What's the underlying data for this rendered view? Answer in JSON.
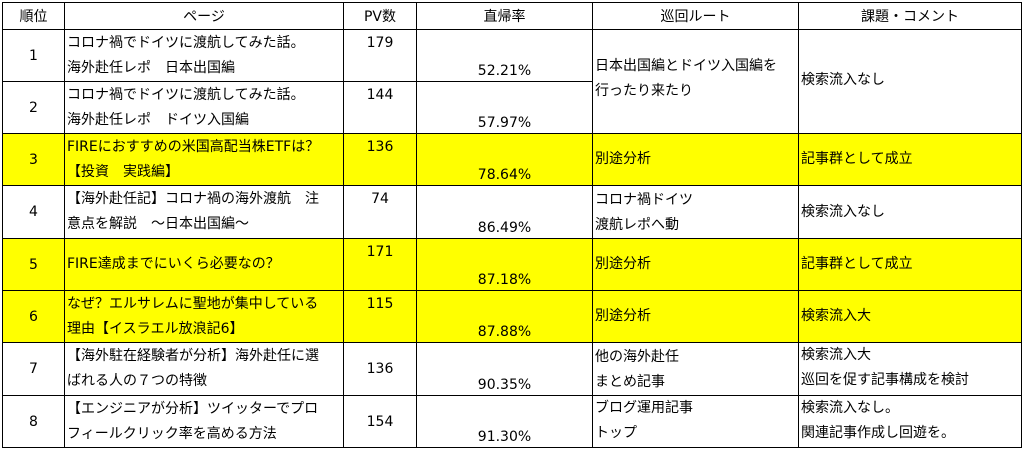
{
  "headers": {
    "rank": "順位",
    "page": "ページ",
    "pv": "PV数",
    "bounce": "直帰率",
    "route": "巡回ルート",
    "comment": "課題・コメント"
  },
  "rows": [
    {
      "rank": "1",
      "page_line1": "コロナ禍でドイツに渡航してみた話。",
      "page_line2": "海外赴任レポ　日本出国編",
      "pv": "179",
      "bounce": "52.21%",
      "route_line1": "日本出国編とドイツ入国編を",
      "route_line2": "行ったり来たり",
      "comment_line1": "検索流入なし",
      "comment_line2": ""
    },
    {
      "rank": "2",
      "page_line1": "コロナ禍でドイツに渡航してみた話。",
      "page_line2": "海外赴任レポ　ドイツ入国編",
      "pv": "144",
      "bounce": "57.97%"
    },
    {
      "rank": "3",
      "page_line1": "FIREにおすすめの米国高配当株ETFは？",
      "page_line2": "【投資　実践編】",
      "pv": "136",
      "bounce": "78.64%",
      "route_line1": "別途分析",
      "route_line2": "",
      "comment_line1": "記事群として成立",
      "comment_line2": ""
    },
    {
      "rank": "4",
      "page_line1": "【海外赴任記】コロナ禍の海外渡航　注",
      "page_line2": "意点を解説　～日本出国編～",
      "pv": "74",
      "bounce": "86.49%",
      "route_line1": "コロナ禍ドイツ",
      "route_line2": "渡航レポへ動",
      "comment_line1": "検索流入なし",
      "comment_line2": ""
    },
    {
      "rank": "5",
      "page_line1": "FIRE達成までにいくら必要なの？",
      "page_line2": "",
      "pv": "171",
      "bounce": "87.18%",
      "route_line1": "別途分析",
      "route_line2": "",
      "comment_line1": "記事群として成立",
      "comment_line2": ""
    },
    {
      "rank": "6",
      "page_line1": "なぜ？エルサレムに聖地が集中している",
      "page_line2": "理由【イスラエル放浪記6】",
      "pv": "115",
      "bounce": "87.88%",
      "route_line1": "別途分析",
      "route_line2": "",
      "comment_line1": "検索流入大",
      "comment_line2": ""
    },
    {
      "rank": "7",
      "page_line1": "【海外駐在経験者が分析】海外赴任に選",
      "page_line2": "ばれる人の７つの特徴",
      "pv": "136",
      "bounce": "90.35%",
      "route_line1": "他の海外赴任",
      "route_line2": "まとめ記事",
      "comment_line1": "検索流入大",
      "comment_line2": "巡回を促す記事構成を検討"
    },
    {
      "rank": "8",
      "page_line1": "【エンジニアが分析】ツイッターでプロ",
      "page_line2": "フィールクリック率を高める方法",
      "pv": "154",
      "bounce": "91.30%",
      "route_line1": "ブログ運用記事",
      "route_line2": "トップ",
      "comment_line1": "検索流入なし。",
      "comment_line2": "関連記事作成し回遊を。"
    }
  ],
  "highlight_color": "#ffff00",
  "highlighted_ranks": [
    "3",
    "5",
    "6"
  ]
}
